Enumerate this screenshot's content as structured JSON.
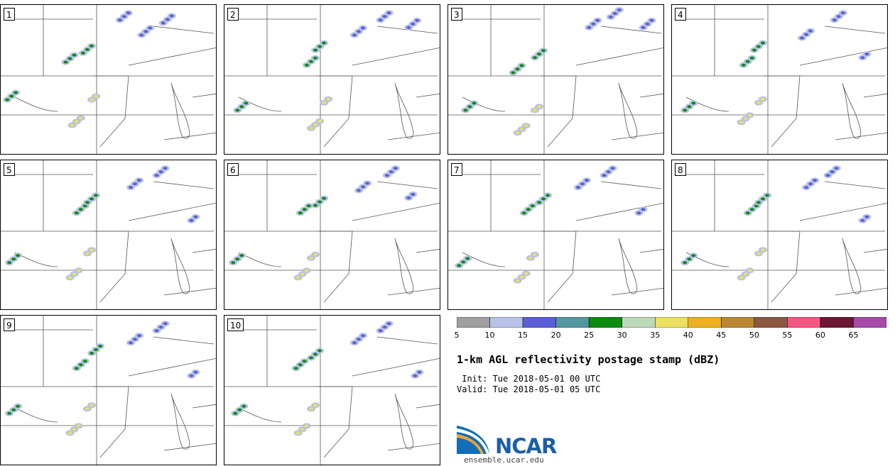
{
  "panels": [
    {
      "label": "1",
      "cells": [
        [
          0.03,
          0.63,
          "g",
          3
        ],
        [
          0.3,
          0.38,
          "g",
          3
        ],
        [
          0.38,
          0.32,
          "g",
          3
        ],
        [
          0.33,
          0.8,
          "y",
          3
        ],
        [
          0.42,
          0.63,
          "y",
          2
        ],
        [
          0.65,
          0.2,
          "b",
          3
        ],
        [
          0.75,
          0.12,
          "b",
          3
        ],
        [
          0.55,
          0.1,
          "b",
          3
        ]
      ]
    },
    {
      "label": "2",
      "cells": [
        [
          0.06,
          0.7,
          "g",
          3
        ],
        [
          0.38,
          0.4,
          "g",
          3
        ],
        [
          0.42,
          0.3,
          "g",
          3
        ],
        [
          0.4,
          0.82,
          "y",
          3
        ],
        [
          0.46,
          0.65,
          "y",
          2
        ],
        [
          0.6,
          0.2,
          "b",
          3
        ],
        [
          0.72,
          0.1,
          "b",
          3
        ],
        [
          0.85,
          0.15,
          "b",
          3
        ]
      ]
    },
    {
      "label": "3",
      "cells": [
        [
          0.08,
          0.7,
          "g",
          3
        ],
        [
          0.3,
          0.45,
          "g",
          3
        ],
        [
          0.4,
          0.35,
          "g",
          3
        ],
        [
          0.32,
          0.85,
          "y",
          3
        ],
        [
          0.4,
          0.7,
          "y",
          2
        ],
        [
          0.65,
          0.15,
          "b",
          3
        ],
        [
          0.75,
          0.08,
          "b",
          3
        ],
        [
          0.9,
          0.15,
          "b",
          3
        ]
      ]
    },
    {
      "label": "4",
      "cells": [
        [
          0.06,
          0.7,
          "g",
          3
        ],
        [
          0.33,
          0.4,
          "g",
          3
        ],
        [
          0.38,
          0.3,
          "g",
          3
        ],
        [
          0.32,
          0.78,
          "y",
          3
        ],
        [
          0.4,
          0.65,
          "y",
          2
        ],
        [
          0.6,
          0.22,
          "b",
          3
        ],
        [
          0.75,
          0.1,
          "b",
          3
        ],
        [
          0.88,
          0.35,
          "b",
          2
        ]
      ]
    },
    {
      "label": "5",
      "cells": [
        [
          0.04,
          0.68,
          "g",
          3
        ],
        [
          0.35,
          0.35,
          "g",
          3
        ],
        [
          0.4,
          0.28,
          "g",
          3
        ],
        [
          0.32,
          0.78,
          "y",
          3
        ],
        [
          0.4,
          0.62,
          "y",
          2
        ],
        [
          0.6,
          0.18,
          "b",
          3
        ],
        [
          0.72,
          0.1,
          "b",
          3
        ],
        [
          0.88,
          0.4,
          "b",
          2
        ]
      ]
    },
    {
      "label": "6",
      "cells": [
        [
          0.04,
          0.68,
          "g",
          3
        ],
        [
          0.35,
          0.35,
          "g",
          3
        ],
        [
          0.42,
          0.3,
          "g",
          3
        ],
        [
          0.34,
          0.78,
          "y",
          3
        ],
        [
          0.4,
          0.65,
          "y",
          2
        ],
        [
          0.62,
          0.2,
          "b",
          3
        ],
        [
          0.75,
          0.1,
          "b",
          3
        ],
        [
          0.85,
          0.25,
          "b",
          2
        ]
      ]
    },
    {
      "label": "7",
      "cells": [
        [
          0.05,
          0.7,
          "g",
          3
        ],
        [
          0.35,
          0.35,
          "g",
          3
        ],
        [
          0.42,
          0.28,
          "g",
          3
        ],
        [
          0.32,
          0.8,
          "y",
          3
        ],
        [
          0.38,
          0.65,
          "y",
          2
        ],
        [
          0.6,
          0.18,
          "b",
          3
        ],
        [
          0.72,
          0.1,
          "b",
          3
        ],
        [
          0.88,
          0.35,
          "b",
          2
        ]
      ]
    },
    {
      "label": "8",
      "cells": [
        [
          0.06,
          0.68,
          "g",
          3
        ],
        [
          0.35,
          0.35,
          "g",
          3
        ],
        [
          0.4,
          0.28,
          "g",
          3
        ],
        [
          0.32,
          0.78,
          "y",
          3
        ],
        [
          0.4,
          0.62,
          "y",
          2
        ],
        [
          0.62,
          0.18,
          "b",
          3
        ],
        [
          0.72,
          0.1,
          "b",
          3
        ],
        [
          0.88,
          0.4,
          "b",
          2
        ]
      ]
    },
    {
      "label": "9",
      "cells": [
        [
          0.04,
          0.65,
          "g",
          3
        ],
        [
          0.35,
          0.35,
          "g",
          3
        ],
        [
          0.42,
          0.25,
          "g",
          3
        ],
        [
          0.32,
          0.78,
          "y",
          3
        ],
        [
          0.4,
          0.62,
          "y",
          2
        ],
        [
          0.6,
          0.18,
          "b",
          3
        ],
        [
          0.72,
          0.1,
          "b",
          3
        ],
        [
          0.88,
          0.4,
          "b",
          2
        ]
      ]
    },
    {
      "label": "10",
      "cells": [
        [
          0.05,
          0.65,
          "g",
          3
        ],
        [
          0.33,
          0.35,
          "g",
          3
        ],
        [
          0.4,
          0.28,
          "g",
          3
        ],
        [
          0.34,
          0.78,
          "y",
          3
        ],
        [
          0.4,
          0.62,
          "y",
          2
        ],
        [
          0.6,
          0.18,
          "b",
          3
        ],
        [
          0.72,
          0.1,
          "b",
          3
        ],
        [
          0.88,
          0.4,
          "b",
          2
        ]
      ]
    }
  ],
  "colorbar": {
    "colors": [
      "#a0a0a0",
      "#b7c2e6",
      "#5a5fd6",
      "#5297a0",
      "#0d8a10",
      "#bcd9b8",
      "#ece060",
      "#eeb020",
      "#bb8732",
      "#8b5840",
      "#f45781",
      "#6b1633",
      "#a64aa8"
    ],
    "ticks": [
      "5",
      "10",
      "15",
      "20",
      "25",
      "30",
      "35",
      "40",
      "45",
      "50",
      "55",
      "60",
      "65"
    ]
  },
  "title": "1-km AGL reflectivity postage stamp (dBZ)",
  "init": " Init: Tue 2018-05-01 00 UTC",
  "valid": "Valid: Tue 2018-05-01 05 UTC",
  "logo_text": "NCAR",
  "url": "ensemble.ucar.edu"
}
